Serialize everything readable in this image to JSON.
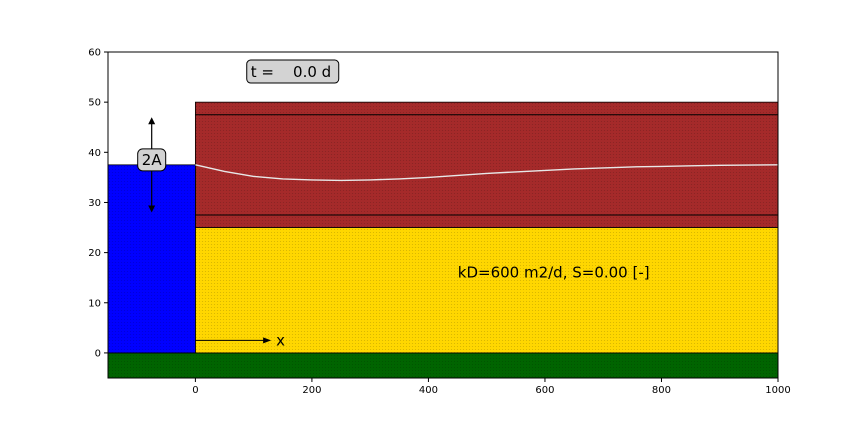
{
  "chart_data": {
    "type": "area",
    "xlim": [
      -150,
      1000
    ],
    "ylim": [
      -5,
      60
    ],
    "x_ticks": [
      0,
      200,
      400,
      600,
      800,
      1000
    ],
    "y_ticks": [
      0,
      10,
      20,
      30,
      40,
      50,
      60
    ],
    "grid": false,
    "time_label": "t =    0.0 d",
    "amplitude_label": "2A",
    "x_arrow_label": "x",
    "aquifer_label": "kD=600 m2/d, S=0.00 [-]",
    "layers": [
      {
        "name": "base",
        "x": [
          -150,
          1000
        ],
        "y": [
          -5,
          0
        ],
        "color": "#006400"
      },
      {
        "name": "aquifer",
        "x": [
          0,
          1000
        ],
        "y": [
          0,
          25
        ],
        "color": "#FFD700"
      },
      {
        "name": "overlying-layer",
        "x": [
          0,
          1000
        ],
        "y": [
          25,
          50
        ],
        "color": "#A52A2A"
      },
      {
        "name": "surface-water",
        "x": [
          -150,
          0
        ],
        "y": [
          0,
          37.5
        ],
        "color": "#0000FF"
      }
    ],
    "layer_lines_y": [
      47.5,
      27.5
    ],
    "head_line": {
      "color": "#e8e8e8",
      "x": [
        0,
        50,
        100,
        150,
        200,
        250,
        300,
        350,
        400,
        450,
        500,
        550,
        600,
        650,
        700,
        750,
        800,
        850,
        900,
        950,
        1000
      ],
      "y": [
        37.5,
        36.2,
        35.2,
        34.7,
        34.5,
        34.4,
        34.5,
        34.7,
        35.0,
        35.4,
        35.8,
        36.1,
        36.4,
        36.7,
        36.9,
        37.1,
        37.2,
        37.3,
        37.4,
        37.45,
        37.5
      ]
    },
    "amplitude_arrow": {
      "x": -75,
      "y_top": 47.0,
      "y_bottom": 28.0,
      "label_y": 38.5
    },
    "x_arrow": {
      "x_start": 0,
      "x_end": 130,
      "y": 2.5
    },
    "time_box_pos": {
      "x": 95,
      "y": 56.0
    },
    "aquifer_label_pos": {
      "x": 615,
      "y": 16
    }
  }
}
